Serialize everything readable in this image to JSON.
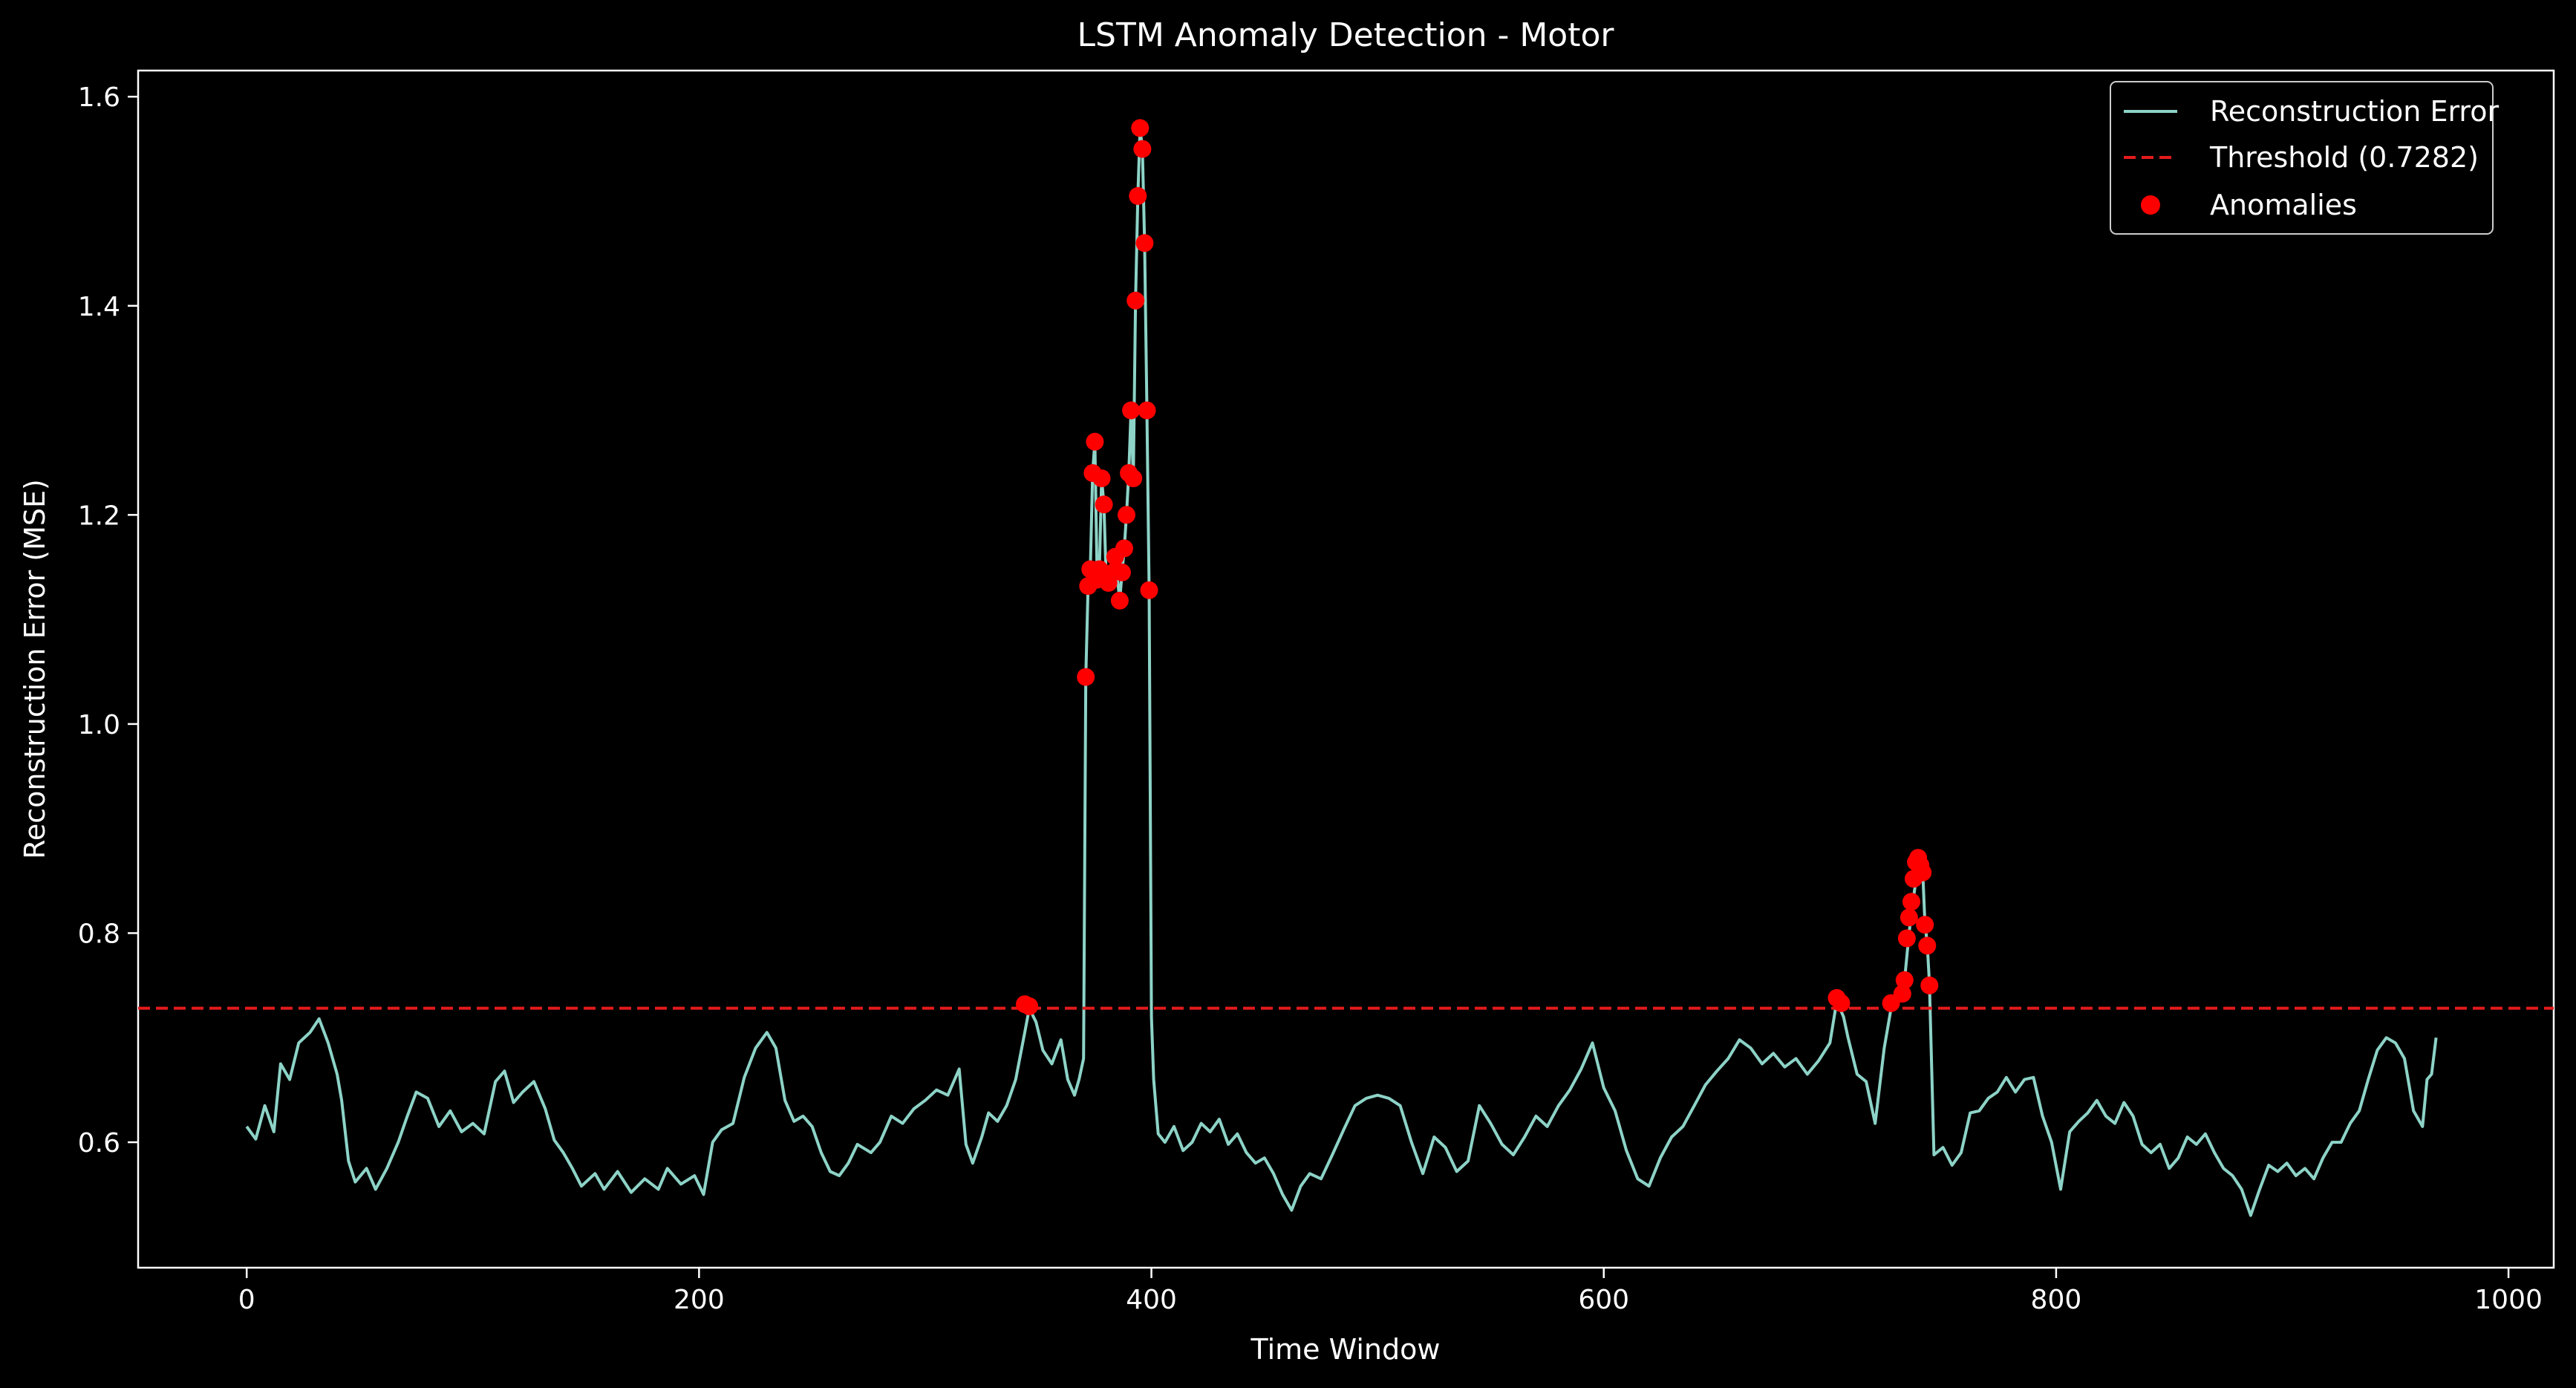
{
  "chart_data": {
    "type": "line",
    "title": "LSTM Anomaly Detection - Motor",
    "xlabel": "Time Window",
    "ylabel": "Reconstruction Error (MSE)",
    "xlim": [
      -48,
      1020
    ],
    "ylim": [
      0.48,
      1.625
    ],
    "xticks": [
      0,
      200,
      400,
      600,
      800,
      1000
    ],
    "yticks": [
      0.6,
      0.8,
      1.0,
      1.2,
      1.4,
      1.6
    ],
    "ytick_labels": [
      "0.6",
      "0.8",
      "1.0",
      "1.2",
      "1.4",
      "1.6"
    ],
    "grid": false,
    "legend": {
      "position": "top-right",
      "entries": [
        {
          "label": "Reconstruction Error",
          "kind": "line"
        },
        {
          "label": "Threshold (0.7282)",
          "kind": "dashed"
        },
        {
          "label": "Anomalies",
          "kind": "marker"
        }
      ]
    },
    "colors": {
      "background": "#000000",
      "error_line": "#8dd3c7",
      "threshold": "#e41a1c",
      "anomaly": "#ff0000",
      "axes": "#ffffff"
    },
    "series": [
      {
        "name": "Reconstruction Error",
        "points": [
          [
            0,
            0.615
          ],
          [
            4,
            0.603
          ],
          [
            8,
            0.635
          ],
          [
            12,
            0.61
          ],
          [
            15,
            0.675
          ],
          [
            19,
            0.66
          ],
          [
            23,
            0.695
          ],
          [
            28,
            0.705
          ],
          [
            32,
            0.718
          ],
          [
            36,
            0.695
          ],
          [
            40,
            0.665
          ],
          [
            42,
            0.64
          ],
          [
            45,
            0.582
          ],
          [
            48,
            0.562
          ],
          [
            53,
            0.575
          ],
          [
            57,
            0.555
          ],
          [
            62,
            0.575
          ],
          [
            67,
            0.6
          ],
          [
            71,
            0.625
          ],
          [
            75,
            0.648
          ],
          [
            80,
            0.642
          ],
          [
            85,
            0.615
          ],
          [
            90,
            0.63
          ],
          [
            95,
            0.61
          ],
          [
            100,
            0.618
          ],
          [
            105,
            0.608
          ],
          [
            110,
            0.658
          ],
          [
            114,
            0.668
          ],
          [
            118,
            0.638
          ],
          [
            122,
            0.648
          ],
          [
            127,
            0.658
          ],
          [
            132,
            0.632
          ],
          [
            136,
            0.602
          ],
          [
            140,
            0.59
          ],
          [
            144,
            0.575
          ],
          [
            148,
            0.558
          ],
          [
            154,
            0.57
          ],
          [
            158,
            0.555
          ],
          [
            164,
            0.572
          ],
          [
            170,
            0.552
          ],
          [
            176,
            0.565
          ],
          [
            182,
            0.555
          ],
          [
            186,
            0.575
          ],
          [
            192,
            0.56
          ],
          [
            198,
            0.568
          ],
          [
            202,
            0.55
          ],
          [
            206,
            0.6
          ],
          [
            210,
            0.612
          ],
          [
            215,
            0.618
          ],
          [
            220,
            0.662
          ],
          [
            225,
            0.69
          ],
          [
            230,
            0.705
          ],
          [
            234,
            0.69
          ],
          [
            238,
            0.64
          ],
          [
            242,
            0.62
          ],
          [
            246,
            0.625
          ],
          [
            250,
            0.615
          ],
          [
            254,
            0.59
          ],
          [
            258,
            0.572
          ],
          [
            262,
            0.568
          ],
          [
            266,
            0.58
          ],
          [
            270,
            0.598
          ],
          [
            276,
            0.59
          ],
          [
            280,
            0.6
          ],
          [
            285,
            0.625
          ],
          [
            290,
            0.618
          ],
          [
            295,
            0.632
          ],
          [
            300,
            0.64
          ],
          [
            305,
            0.65
          ],
          [
            310,
            0.645
          ],
          [
            315,
            0.67
          ],
          [
            318,
            0.598
          ],
          [
            321,
            0.58
          ],
          [
            325,
            0.605
          ],
          [
            328,
            0.628
          ],
          [
            332,
            0.62
          ],
          [
            336,
            0.635
          ],
          [
            340,
            0.66
          ],
          [
            344,
            0.705
          ],
          [
            346,
            0.728
          ],
          [
            349,
            0.715
          ],
          [
            352,
            0.688
          ],
          [
            356,
            0.675
          ],
          [
            360,
            0.698
          ],
          [
            363,
            0.66
          ],
          [
            366,
            0.645
          ],
          [
            368,
            0.66
          ],
          [
            370,
            0.68
          ],
          [
            371,
            1.045
          ],
          [
            372,
            1.132
          ],
          [
            373,
            1.148
          ],
          [
            374,
            1.24
          ],
          [
            375,
            1.27
          ],
          [
            376,
            1.138
          ],
          [
            377,
            1.148
          ],
          [
            378,
            1.235
          ],
          [
            379,
            1.21
          ],
          [
            380,
            1.14
          ],
          [
            381,
            1.135
          ],
          [
            382,
            1.14
          ],
          [
            383,
            1.145
          ],
          [
            384,
            1.16
          ],
          [
            386,
            1.118
          ],
          [
            387,
            1.145
          ],
          [
            388,
            1.168
          ],
          [
            389,
            1.2
          ],
          [
            390,
            1.24
          ],
          [
            391,
            1.3
          ],
          [
            392,
            1.235
          ],
          [
            393,
            1.405
          ],
          [
            394,
            1.505
          ],
          [
            395,
            1.57
          ],
          [
            396,
            1.55
          ],
          [
            397,
            1.46
          ],
          [
            398,
            1.3
          ],
          [
            399,
            1.128
          ],
          [
            400,
            0.72
          ],
          [
            401,
            0.66
          ],
          [
            403,
            0.608
          ],
          [
            406,
            0.6
          ],
          [
            410,
            0.615
          ],
          [
            414,
            0.592
          ],
          [
            418,
            0.6
          ],
          [
            422,
            0.618
          ],
          [
            426,
            0.61
          ],
          [
            430,
            0.622
          ],
          [
            434,
            0.598
          ],
          [
            438,
            0.608
          ],
          [
            442,
            0.59
          ],
          [
            446,
            0.58
          ],
          [
            450,
            0.585
          ],
          [
            454,
            0.57
          ],
          [
            458,
            0.55
          ],
          [
            462,
            0.535
          ],
          [
            466,
            0.558
          ],
          [
            470,
            0.57
          ],
          [
            475,
            0.565
          ],
          [
            480,
            0.588
          ],
          [
            485,
            0.612
          ],
          [
            490,
            0.635
          ],
          [
            495,
            0.642
          ],
          [
            500,
            0.645
          ],
          [
            505,
            0.642
          ],
          [
            510,
            0.635
          ],
          [
            515,
            0.6
          ],
          [
            520,
            0.57
          ],
          [
            525,
            0.605
          ],
          [
            530,
            0.595
          ],
          [
            535,
            0.572
          ],
          [
            540,
            0.582
          ],
          [
            545,
            0.635
          ],
          [
            550,
            0.618
          ],
          [
            555,
            0.598
          ],
          [
            560,
            0.588
          ],
          [
            565,
            0.605
          ],
          [
            570,
            0.625
          ],
          [
            575,
            0.615
          ],
          [
            580,
            0.635
          ],
          [
            585,
            0.65
          ],
          [
            590,
            0.67
          ],
          [
            595,
            0.695
          ],
          [
            600,
            0.652
          ],
          [
            605,
            0.63
          ],
          [
            610,
            0.592
          ],
          [
            615,
            0.565
          ],
          [
            620,
            0.558
          ],
          [
            625,
            0.585
          ],
          [
            630,
            0.605
          ],
          [
            635,
            0.615
          ],
          [
            640,
            0.635
          ],
          [
            645,
            0.655
          ],
          [
            650,
            0.668
          ],
          [
            655,
            0.68
          ],
          [
            660,
            0.698
          ],
          [
            665,
            0.69
          ],
          [
            670,
            0.675
          ],
          [
            675,
            0.685
          ],
          [
            680,
            0.672
          ],
          [
            685,
            0.68
          ],
          [
            690,
            0.665
          ],
          [
            695,
            0.678
          ],
          [
            700,
            0.695
          ],
          [
            703,
            0.735
          ],
          [
            706,
            0.72
          ],
          [
            708,
            0.7
          ],
          [
            712,
            0.665
          ],
          [
            716,
            0.658
          ],
          [
            720,
            0.618
          ],
          [
            724,
            0.69
          ],
          [
            727,
            0.728
          ],
          [
            730,
            0.735
          ],
          [
            733,
            0.755
          ],
          [
            735,
            0.8
          ],
          [
            736,
            0.82
          ],
          [
            737,
            0.835
          ],
          [
            738,
            0.85
          ],
          [
            739,
            0.87
          ],
          [
            740,
            0.87
          ],
          [
            741,
            0.86
          ],
          [
            742,
            0.81
          ],
          [
            743,
            0.79
          ],
          [
            744,
            0.752
          ],
          [
            746,
            0.588
          ],
          [
            750,
            0.595
          ],
          [
            754,
            0.578
          ],
          [
            758,
            0.59
          ],
          [
            762,
            0.628
          ],
          [
            766,
            0.63
          ],
          [
            770,
            0.642
          ],
          [
            774,
            0.648
          ],
          [
            778,
            0.662
          ],
          [
            782,
            0.648
          ],
          [
            786,
            0.66
          ],
          [
            790,
            0.662
          ],
          [
            794,
            0.625
          ],
          [
            798,
            0.6
          ],
          [
            802,
            0.555
          ],
          [
            806,
            0.61
          ],
          [
            810,
            0.62
          ],
          [
            814,
            0.628
          ],
          [
            818,
            0.64
          ],
          [
            822,
            0.625
          ],
          [
            826,
            0.618
          ],
          [
            830,
            0.638
          ],
          [
            834,
            0.625
          ],
          [
            838,
            0.598
          ],
          [
            842,
            0.59
          ],
          [
            846,
            0.598
          ],
          [
            850,
            0.575
          ],
          [
            854,
            0.585
          ],
          [
            858,
            0.605
          ],
          [
            862,
            0.598
          ],
          [
            866,
            0.608
          ],
          [
            870,
            0.59
          ],
          [
            874,
            0.575
          ],
          [
            878,
            0.568
          ],
          [
            882,
            0.555
          ],
          [
            886,
            0.53
          ],
          [
            890,
            0.555
          ],
          [
            894,
            0.578
          ],
          [
            898,
            0.572
          ],
          [
            902,
            0.58
          ],
          [
            906,
            0.568
          ],
          [
            910,
            0.575
          ],
          [
            914,
            0.565
          ],
          [
            918,
            0.585
          ],
          [
            922,
            0.6
          ],
          [
            926,
            0.6
          ],
          [
            930,
            0.618
          ],
          [
            934,
            0.63
          ],
          [
            938,
            0.66
          ],
          [
            942,
            0.688
          ],
          [
            946,
            0.7
          ],
          [
            950,
            0.695
          ],
          [
            954,
            0.68
          ],
          [
            958,
            0.63
          ],
          [
            962,
            0.615
          ],
          [
            964,
            0.66
          ],
          [
            966,
            0.665
          ],
          [
            968,
            0.7
          ]
        ]
      },
      {
        "name": "Threshold (0.7282)",
        "y": 0.7282
      },
      {
        "name": "Anomalies",
        "points": [
          [
            344,
            0.732
          ],
          [
            346,
            0.73
          ],
          [
            371,
            1.045
          ],
          [
            372,
            1.132
          ],
          [
            373,
            1.148
          ],
          [
            374,
            1.24
          ],
          [
            375,
            1.27
          ],
          [
            376,
            1.138
          ],
          [
            377,
            1.148
          ],
          [
            378,
            1.235
          ],
          [
            379,
            1.21
          ],
          [
            380,
            1.14
          ],
          [
            381,
            1.135
          ],
          [
            383,
            1.145
          ],
          [
            384,
            1.16
          ],
          [
            386,
            1.118
          ],
          [
            387,
            1.145
          ],
          [
            388,
            1.168
          ],
          [
            389,
            1.2
          ],
          [
            390,
            1.24
          ],
          [
            391,
            1.3
          ],
          [
            392,
            1.235
          ],
          [
            393,
            1.405
          ],
          [
            394,
            1.505
          ],
          [
            395,
            1.57
          ],
          [
            396,
            1.55
          ],
          [
            397,
            1.46
          ],
          [
            398,
            1.3
          ],
          [
            399,
            1.128
          ],
          [
            703,
            0.738
          ],
          [
            705,
            0.733
          ],
          [
            727,
            0.733
          ],
          [
            732,
            0.742
          ],
          [
            733,
            0.755
          ],
          [
            734,
            0.795
          ],
          [
            735,
            0.815
          ],
          [
            736,
            0.83
          ],
          [
            737,
            0.852
          ],
          [
            738,
            0.868
          ],
          [
            739,
            0.872
          ],
          [
            740,
            0.865
          ],
          [
            741,
            0.858
          ],
          [
            742,
            0.808
          ],
          [
            743,
            0.788
          ],
          [
            744,
            0.75
          ]
        ]
      }
    ]
  }
}
